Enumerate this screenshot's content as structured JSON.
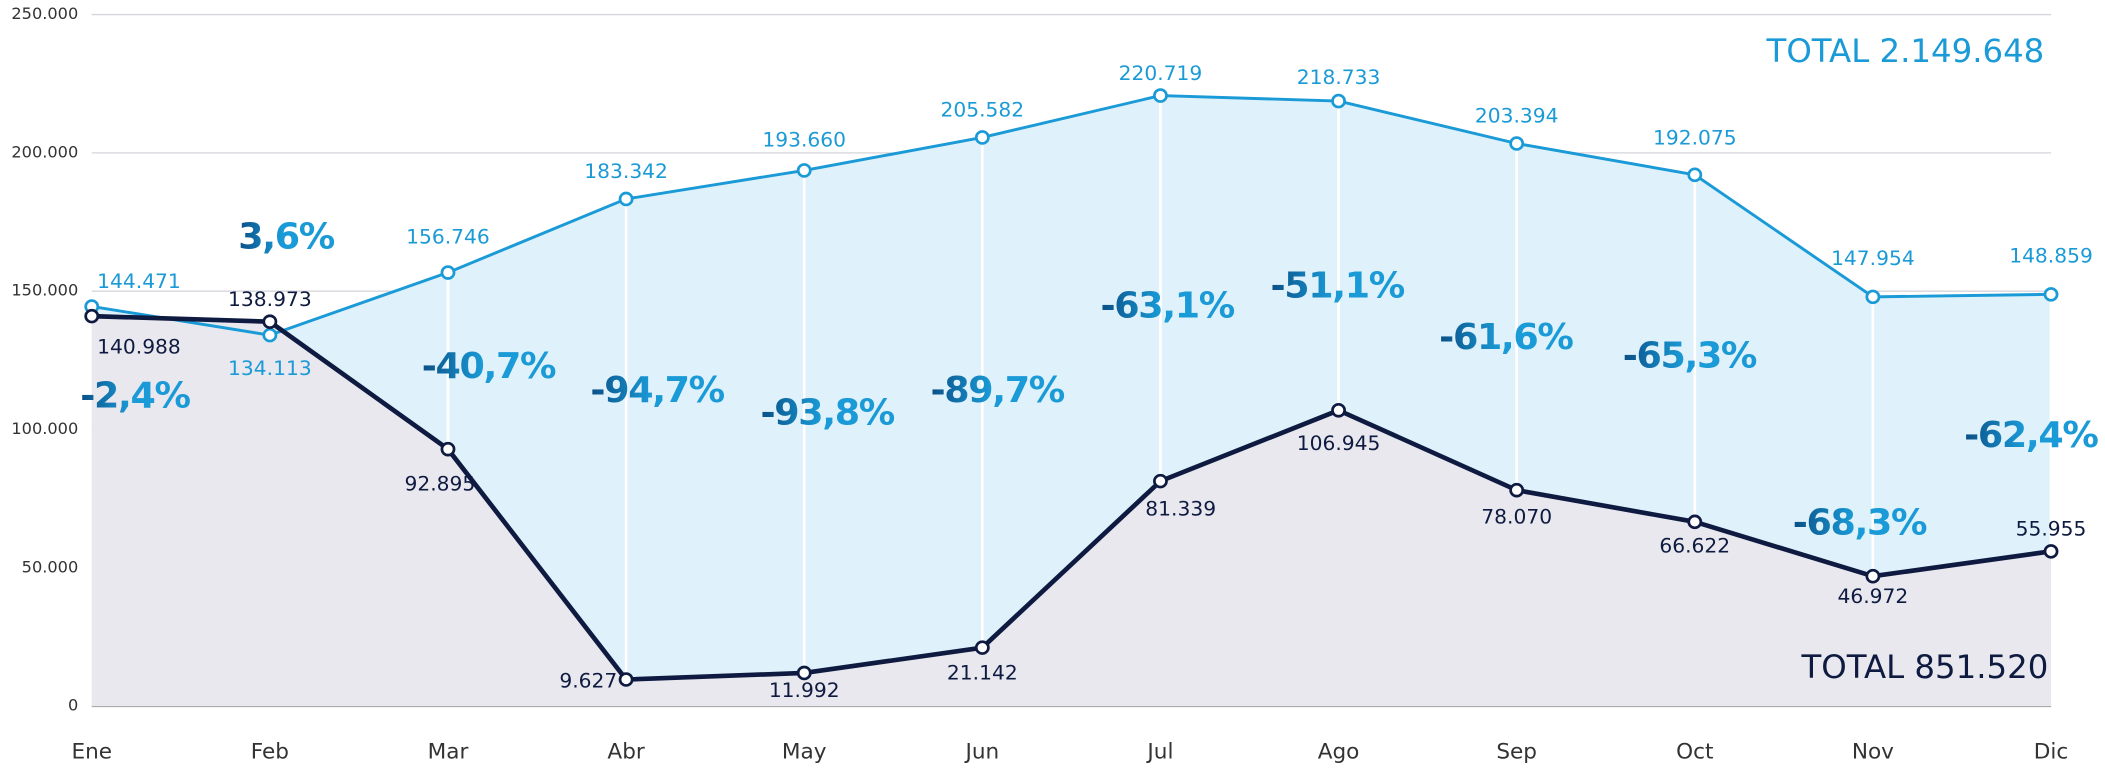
{
  "chart_data": {
    "type": "line",
    "categories": [
      "Ene",
      "Feb",
      "Mar",
      "Abr",
      "May",
      "Jun",
      "Jul",
      "Ago",
      "Sep",
      "Oct",
      "Nov",
      "Dic"
    ],
    "series": [
      {
        "color": "#1a9ad6",
        "fill": "#dff1fa",
        "values": [
          144471,
          134113,
          156746,
          183342,
          193660,
          205582,
          220719,
          218733,
          203394,
          192075,
          147954,
          148859
        ],
        "value_labels": [
          "144.471",
          "134.113",
          "156.746",
          "183.342",
          "193.660",
          "205.582",
          "220.719",
          "218.733",
          "203.394",
          "192.075",
          "147.954",
          "148.859"
        ]
      },
      {
        "color": "#0e1a40",
        "fill": "#e8e8ee",
        "values": [
          140988,
          138973,
          92895,
          9627,
          11992,
          21142,
          81339,
          106945,
          78070,
          66622,
          46972,
          55955
        ],
        "value_labels": [
          "140.988",
          "138.973",
          "92.895",
          "9.627",
          "11.992",
          "21.142",
          "81.339",
          "106.945",
          "78.070",
          "66.622",
          "46.972",
          "55.955"
        ]
      }
    ],
    "annotations": [
      "-2,4%",
      "3,6%",
      "-40,7%",
      "-94,7%",
      "-93,8%",
      "-89,7%",
      "-63,1%",
      "-51,1%",
      "-61,6%",
      "-65,3%",
      "-68,3%",
      "-62,4%"
    ],
    "totals": [
      "TOTAL 2.149.648",
      "TOTAL 851.520"
    ],
    "ylim": [
      0,
      250000
    ],
    "yticks": [
      0,
      {
        "value": 50000,
        "label": "50.000"
      },
      {
        "value": 100000,
        "label": "100.000"
      },
      {
        "value": 150000,
        "label": "150.000"
      },
      {
        "value": 200000,
        "label": "200.000"
      },
      {
        "value": 250000,
        "label": "250.000"
      }
    ],
    "grid": true
  }
}
